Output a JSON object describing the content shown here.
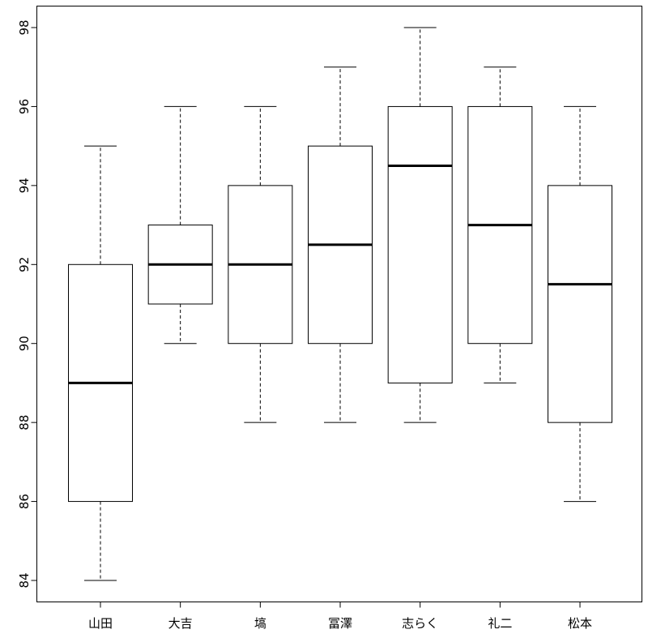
{
  "chart_data": {
    "type": "boxplot",
    "title": "",
    "xlabel": "",
    "ylabel": "",
    "ylim": [
      83.6,
      98.5
    ],
    "yticks": [
      84,
      86,
      88,
      90,
      92,
      94,
      96,
      98
    ],
    "grid": false,
    "categories": [
      "山田",
      "大吉",
      "塙",
      "冨澤",
      "志らく",
      "礼二",
      "松本"
    ],
    "boxes": [
      {
        "category": "山田",
        "whisker_low": 84,
        "q1": 86,
        "median": 89,
        "q3": 92,
        "whisker_high": 95
      },
      {
        "category": "大吉",
        "whisker_low": 90,
        "q1": 91,
        "median": 92,
        "q3": 93,
        "whisker_high": 96
      },
      {
        "category": "塙",
        "whisker_low": 88,
        "q1": 90,
        "median": 92,
        "q3": 94,
        "whisker_high": 96
      },
      {
        "category": "冨澤",
        "whisker_low": 88,
        "q1": 90,
        "median": 92.5,
        "q3": 95,
        "whisker_high": 97
      },
      {
        "category": "志らく",
        "whisker_low": 88,
        "q1": 89,
        "median": 94.5,
        "q3": 96,
        "whisker_high": 98
      },
      {
        "category": "礼二",
        "whisker_low": 89,
        "q1": 90,
        "median": 93,
        "q3": 96,
        "whisker_high": 97
      },
      {
        "category": "松本",
        "whisker_low": 86,
        "q1": 88,
        "median": 91.5,
        "q3": 94,
        "whisker_high": 96
      }
    ]
  }
}
